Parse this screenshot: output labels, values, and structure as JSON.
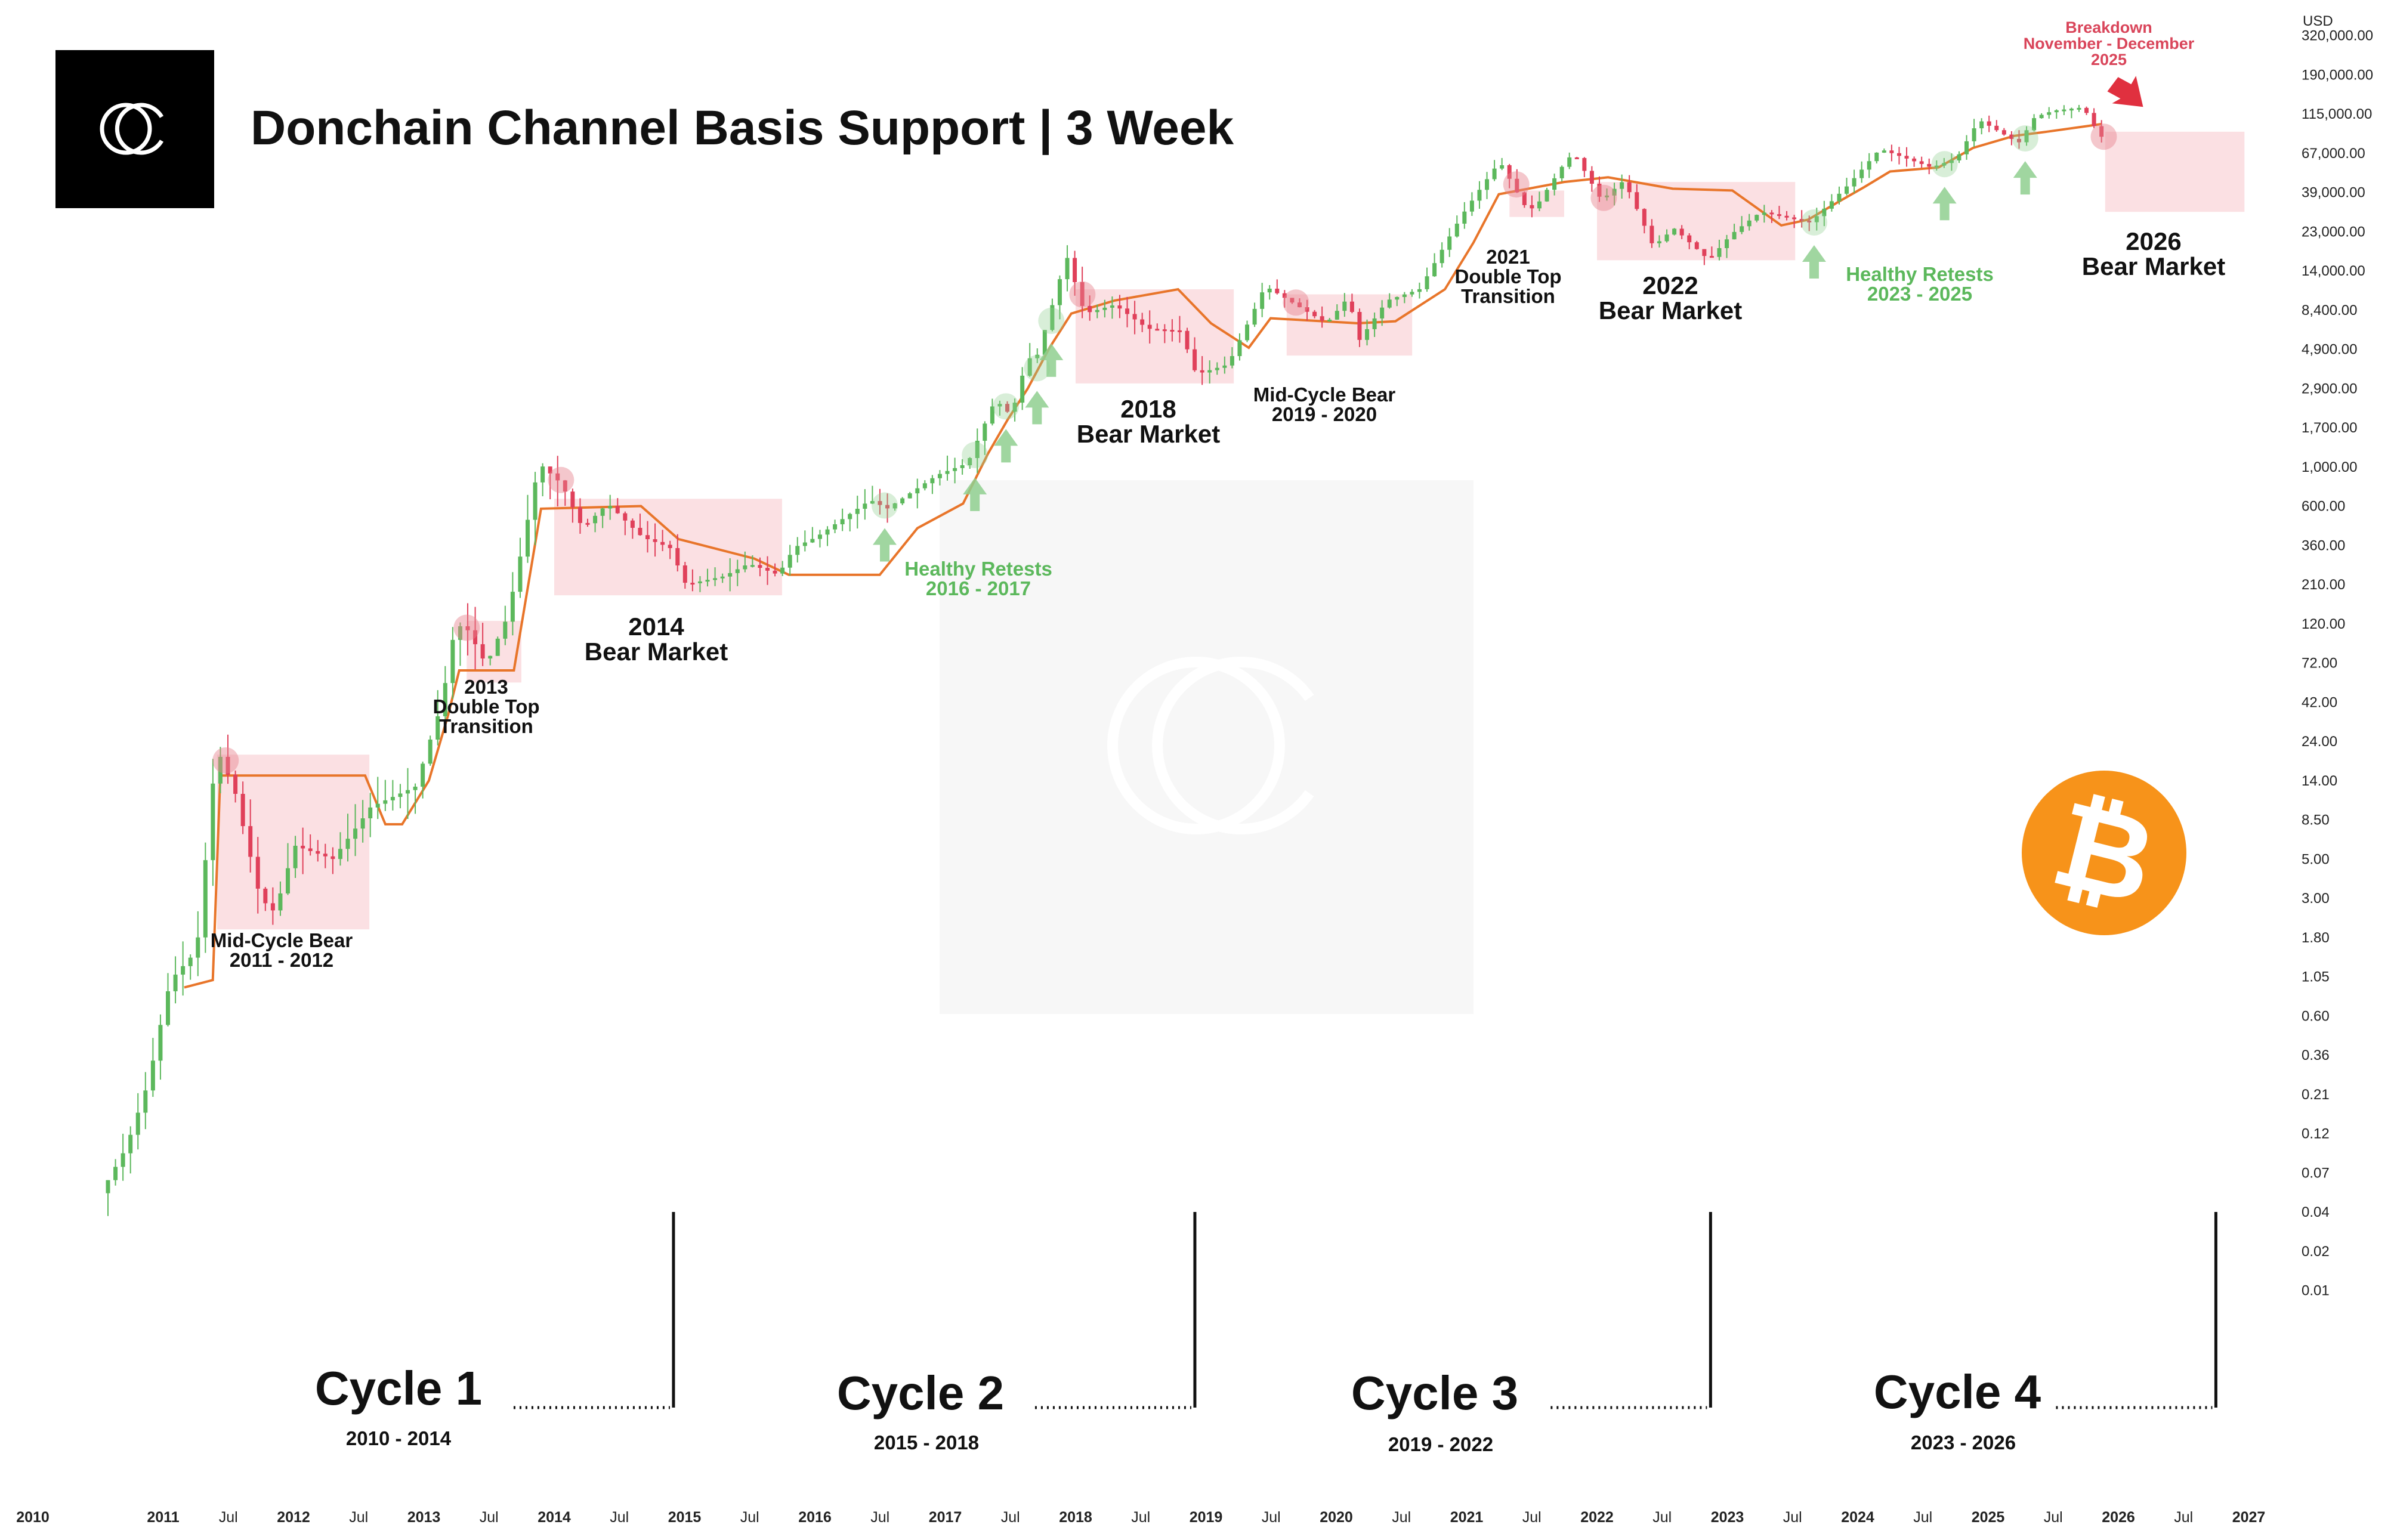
{
  "title": "Donchain Channel Basis Support | 3 Week",
  "currency": "USD",
  "colors": {
    "bull": "#5cb85c",
    "bear": "#e0405a",
    "basis": "#e8752a",
    "zone": "#fbdde0",
    "retest": "#8fcf8f",
    "bitcoin": "#f7931a"
  },
  "icons": {
    "brand": "donchain-logo-icon",
    "coin": "bitcoin-icon"
  },
  "chart_data": {
    "type": "candlestick",
    "scale": "log",
    "y_ticks": [
      "320,000.00",
      "190,000.00",
      "115,000.00",
      "67,000.00",
      "39,000.00",
      "23,000.00",
      "14,000.00",
      "8,400.00",
      "4,900.00",
      "2,900.00",
      "1,700.00",
      "1,000.00",
      "600.00",
      "360.00",
      "210.00",
      "120.00",
      "72.00",
      "42.00",
      "24.00",
      "14.00",
      "8.50",
      "5.00",
      "3.00",
      "1.80",
      "1.05",
      "0.60",
      "0.36",
      "0.21",
      "0.12",
      "0.07",
      "0.04",
      "0.02",
      "0.01"
    ],
    "x_ticks": [
      "2010",
      "2011",
      "Jul",
      "2012",
      "Jul",
      "2013",
      "Jul",
      "2014",
      "Jul",
      "2015",
      "Jul",
      "2016",
      "Jul",
      "2017",
      "Jul",
      "2018",
      "Jul",
      "2019",
      "Jul",
      "2020",
      "Jul",
      "2021",
      "Jul",
      "2022",
      "Jul",
      "2023",
      "Jul",
      "2024",
      "Jul",
      "2025",
      "Jul",
      "2026",
      "Jul",
      "2027"
    ],
    "price_anchors": [
      [
        "2010-07-15",
        0.05
      ],
      [
        "2010-10-01",
        0.1
      ],
      [
        "2010-12-01",
        0.25
      ],
      [
        "2011-02-01",
        1
      ],
      [
        "2011-04-15",
        1.5
      ],
      [
        "2011-06-10",
        22
      ],
      [
        "2011-08-01",
        12
      ],
      [
        "2011-10-10",
        3
      ],
      [
        "2011-11-20",
        2.5
      ],
      [
        "2012-01-15",
        6
      ],
      [
        "2012-05-01",
        5
      ],
      [
        "2012-08-15",
        10
      ],
      [
        "2012-12-20",
        13
      ],
      [
        "2013-03-01",
        40
      ],
      [
        "2013-04-10",
        120
      ],
      [
        "2013-05-15",
        110
      ],
      [
        "2013-07-05",
        70
      ],
      [
        "2013-09-01",
        130
      ],
      [
        "2013-11-30",
        1050
      ],
      [
        "2014-02-01",
        800
      ],
      [
        "2014-04-01",
        450
      ],
      [
        "2014-06-10",
        620
      ],
      [
        "2014-09-15",
        400
      ],
      [
        "2014-12-01",
        350
      ],
      [
        "2015-01-15",
        210
      ],
      [
        "2015-05-01",
        235
      ],
      [
        "2015-07-10",
        280
      ],
      [
        "2015-10-01",
        240
      ],
      [
        "2015-11-15",
        350
      ],
      [
        "2016-01-15",
        400
      ],
      [
        "2016-06-15",
        650
      ],
      [
        "2016-08-01",
        580
      ],
      [
        "2016-12-20",
        900
      ],
      [
        "2017-03-15",
        1050
      ],
      [
        "2017-06-01",
        2500
      ],
      [
        "2017-07-15",
        2000
      ],
      [
        "2017-09-01",
        4600
      ],
      [
        "2017-09-15",
        3800
      ],
      [
        "2017-12-17",
        17000
      ],
      [
        "2018-02-06",
        8000
      ],
      [
        "2018-05-01",
        9000
      ],
      [
        "2018-08-01",
        6500
      ],
      [
        "2018-11-01",
        6300
      ],
      [
        "2018-12-15",
        3500
      ],
      [
        "2019-03-15",
        4000
      ],
      [
        "2019-06-26",
        11500
      ],
      [
        "2019-09-01",
        9500
      ],
      [
        "2019-12-15",
        7000
      ],
      [
        "2020-02-15",
        10000
      ],
      [
        "2020-03-15",
        5500
      ],
      [
        "2020-06-01",
        9500
      ],
      [
        "2020-09-01",
        11000
      ],
      [
        "2020-12-31",
        29000
      ],
      [
        "2021-04-14",
        60000
      ],
      [
        "2021-06-20",
        33000
      ],
      [
        "2021-07-20",
        31000
      ],
      [
        "2021-10-20",
        62000
      ],
      [
        "2021-11-10",
        66000
      ],
      [
        "2022-01-24",
        35000
      ],
      [
        "2022-03-28",
        46000
      ],
      [
        "2022-06-18",
        19000
      ],
      [
        "2022-08-15",
        24000
      ],
      [
        "2022-11-21",
        16000
      ],
      [
        "2023-01-20",
        22000
      ],
      [
        "2023-04-15",
        30000
      ],
      [
        "2023-09-01",
        26000
      ],
      [
        "2023-12-15",
        43000
      ],
      [
        "2024-03-14",
        71000
      ],
      [
        "2024-08-05",
        55000
      ],
      [
        "2024-10-15",
        62000
      ],
      [
        "2024-12-17",
        106000
      ],
      [
        "2025-04-07",
        77000
      ],
      [
        "2025-05-22",
        110000
      ],
      [
        "2025-07-14",
        120000
      ],
      [
        "2025-10-06",
        125000
      ],
      [
        "2025-11-21",
        84000
      ]
    ],
    "basis_anchors": [
      [
        "2011-03-01",
        0.9
      ],
      [
        "2011-05-20",
        1.0
      ],
      [
        "2011-06-10",
        15
      ],
      [
        "2012-07-20",
        15
      ],
      [
        "2012-09-15",
        8
      ],
      [
        "2012-11-01",
        8
      ],
      [
        "2013-01-15",
        14
      ],
      [
        "2013-03-10",
        35
      ],
      [
        "2013-04-10",
        65
      ],
      [
        "2013-09-10",
        65
      ],
      [
        "2013-11-25",
        580
      ],
      [
        "2014-09-01",
        600
      ],
      [
        "2014-12-15",
        390
      ],
      [
        "2015-07-15",
        300
      ],
      [
        "2015-10-20",
        240
      ],
      [
        "2016-07-01",
        240
      ],
      [
        "2016-10-15",
        450
      ],
      [
        "2017-02-20",
        620
      ],
      [
        "2017-05-01",
        1200
      ],
      [
        "2017-06-25",
        1900
      ],
      [
        "2017-08-20",
        2900
      ],
      [
        "2017-10-20",
        5000
      ],
      [
        "2017-12-20",
        8000
      ],
      [
        "2018-04-20",
        9500
      ],
      [
        "2018-10-15",
        11000
      ],
      [
        "2019-01-15",
        7000
      ],
      [
        "2019-05-01",
        5000
      ],
      [
        "2019-07-01",
        7500
      ],
      [
        "2020-03-01",
        7000
      ],
      [
        "2020-06-15",
        7200
      ],
      [
        "2020-11-01",
        11000
      ],
      [
        "2021-01-20",
        20000
      ],
      [
        "2021-04-01",
        38000
      ],
      [
        "2021-10-01",
        45000
      ],
      [
        "2022-02-01",
        48000
      ],
      [
        "2022-08-01",
        41000
      ],
      [
        "2023-01-15",
        40000
      ],
      [
        "2023-06-01",
        25000
      ],
      [
        "2023-08-15",
        27000
      ],
      [
        "2023-11-15",
        35000
      ],
      [
        "2024-01-20",
        42000
      ],
      [
        "2024-04-01",
        52000
      ],
      [
        "2024-08-15",
        55000
      ],
      [
        "2024-11-20",
        72000
      ],
      [
        "2025-03-15",
        85000
      ],
      [
        "2025-06-15",
        90000
      ],
      [
        "2025-11-15",
        100000
      ]
    ],
    "zones": [
      {
        "from": "2011-06-01",
        "to": "2012-08-01",
        "hi": 20,
        "lo": 2.0
      },
      {
        "from": "2013-05-01",
        "to": "2013-10-01",
        "hi": 125,
        "lo": 55
      },
      {
        "from": "2014-01-01",
        "to": "2015-10-01",
        "hi": 660,
        "lo": 180
      },
      {
        "from": "2018-01-01",
        "to": "2019-03-20",
        "hi": 11000,
        "lo": 3100
      },
      {
        "from": "2019-08-15",
        "to": "2020-08-01",
        "hi": 10300,
        "lo": 4500
      },
      {
        "from": "2021-05-01",
        "to": "2021-10-01",
        "hi": 40000,
        "lo": 28000
      },
      {
        "from": "2022-01-01",
        "to": "2023-07-10",
        "hi": 45000,
        "lo": 16000
      },
      {
        "from": "2025-11-25",
        "to": "2026-12-20",
        "hi": 90000,
        "lo": 30000
      }
    ],
    "retests": [
      "2016-07-15",
      "2017-03-25",
      "2017-06-20",
      "2017-09-15",
      "2017-10-25",
      "2023-09-01",
      "2024-09-01",
      "2025-04-15"
    ],
    "breakdown_date": "2025-11-21",
    "cycle_lines": [
      "2014-12-01",
      "2018-12-01",
      "2022-11-15",
      "2026-10-01"
    ]
  },
  "annotations": {
    "mid_2011_l1": "Mid-Cycle Bear",
    "mid_2011_l2": "2011 - 2012",
    "dt2013_l1": "2013",
    "dt2013_l2": "Double Top",
    "dt2013_l3": "Transition",
    "bm2014_l1": "2014",
    "bm2014_l2": "Bear Market",
    "hr1617_l1": "Healthy Retests",
    "hr1617_l2": "2016 - 2017",
    "bm2018_l1": "2018",
    "bm2018_l2": "Bear Market",
    "mid1920_l1": "Mid-Cycle Bear",
    "mid1920_l2": "2019 - 2020",
    "dt2021_l1": "2021",
    "dt2021_l2": "Double Top",
    "dt2021_l3": "Transition",
    "bm2022_l1": "2022",
    "bm2022_l2": "Bear Market",
    "hr2325_l1": "Healthy Retests",
    "hr2325_l2": "2023 - 2025",
    "bd_l1": "Breakdown",
    "bd_l2": "November - December",
    "bd_l3": "2025",
    "bm2026_l1": "2026",
    "bm2026_l2": "Bear Market"
  },
  "cycles": [
    {
      "label": "Cycle 1",
      "years": "2010 - 2014"
    },
    {
      "label": "Cycle 2",
      "years": "2015 - 2018"
    },
    {
      "label": "Cycle 3",
      "years": "2019 - 2022"
    },
    {
      "label": "Cycle 4",
      "years": "2023 - 2026"
    }
  ]
}
